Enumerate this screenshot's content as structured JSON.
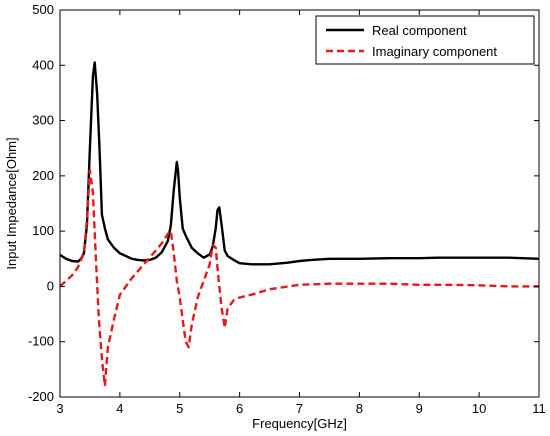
{
  "chart_data": {
    "type": "line",
    "title": "",
    "xlabel": "Frequency[GHz]",
    "ylabel": "Input Impedance[Ohm]",
    "xlim": [
      3,
      11
    ],
    "ylim": [
      -200,
      500
    ],
    "xticks": [
      3,
      4,
      5,
      6,
      7,
      8,
      9,
      10,
      11
    ],
    "yticks": [
      -200,
      -100,
      0,
      100,
      200,
      300,
      400,
      500
    ],
    "grid": false,
    "legend_position": "top-right",
    "series": [
      {
        "name": "Real component",
        "color": "#000000",
        "style": "solid",
        "x": [
          3.0,
          3.1,
          3.2,
          3.3,
          3.35,
          3.4,
          3.45,
          3.5,
          3.55,
          3.58,
          3.62,
          3.66,
          3.7,
          3.75,
          3.8,
          3.9,
          4.0,
          4.1,
          4.2,
          4.3,
          4.4,
          4.5,
          4.6,
          4.7,
          4.8,
          4.85,
          4.9,
          4.95,
          4.97,
          5.0,
          5.05,
          5.1,
          5.2,
          5.3,
          5.4,
          5.5,
          5.55,
          5.6,
          5.63,
          5.66,
          5.7,
          5.75,
          5.8,
          5.9,
          6.0,
          6.2,
          6.5,
          6.8,
          7.0,
          7.2,
          7.5,
          8.0,
          8.5,
          9.0,
          9.3,
          10.0,
          10.5,
          11.0
        ],
        "y": [
          57,
          50,
          46,
          45,
          50,
          60,
          110,
          250,
          380,
          405,
          350,
          250,
          130,
          105,
          85,
          70,
          60,
          55,
          50,
          48,
          47,
          48,
          52,
          62,
          82,
          110,
          175,
          225,
          210,
          160,
          105,
          92,
          70,
          60,
          52,
          58,
          72,
          105,
          138,
          143,
          110,
          65,
          55,
          48,
          42,
          40,
          40,
          43,
          46,
          48,
          50,
          50,
          51,
          51,
          52,
          52,
          52,
          50
        ]
      },
      {
        "name": "Imaginary component",
        "color": "#e31a1c",
        "style": "dashed",
        "x": [
          3.0,
          3.1,
          3.2,
          3.3,
          3.4,
          3.45,
          3.5,
          3.55,
          3.6,
          3.65,
          3.7,
          3.75,
          3.8,
          3.9,
          4.0,
          4.2,
          4.4,
          4.6,
          4.7,
          4.8,
          4.85,
          4.9,
          4.95,
          5.0,
          5.05,
          5.1,
          5.15,
          5.2,
          5.3,
          5.4,
          5.5,
          5.55,
          5.6,
          5.65,
          5.7,
          5.75,
          5.8,
          5.9,
          6.0,
          6.2,
          6.5,
          7.0,
          7.5,
          8.0,
          8.5,
          9.0,
          9.5,
          10.0,
          10.5,
          11.0
        ],
        "y": [
          0,
          10,
          20,
          35,
          60,
          120,
          210,
          170,
          50,
          -60,
          -130,
          -180,
          -110,
          -60,
          -15,
          15,
          40,
          65,
          78,
          95,
          100,
          60,
          10,
          -20,
          -60,
          -100,
          -110,
          -70,
          -20,
          10,
          40,
          75,
          70,
          10,
          -40,
          -75,
          -40,
          -25,
          -20,
          -15,
          -5,
          3,
          5,
          5,
          5,
          3,
          3,
          2,
          0,
          0
        ]
      }
    ]
  }
}
